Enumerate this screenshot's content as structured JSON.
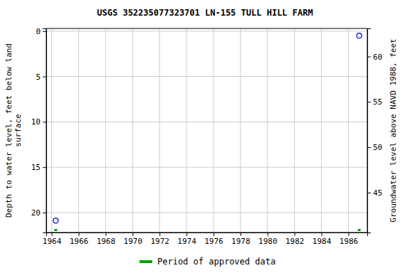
{
  "chart_data": {
    "type": "scatter",
    "title": "USGS 352235077323701 LN-155 TULL HILL FARM",
    "y_label": "Depth to water level, feet below land surface",
    "y2_label": "Groundwater level above NAVD 1988, feet",
    "xlim": [
      1963.6,
      1987.4
    ],
    "xticks": [
      1964,
      1966,
      1968,
      1970,
      1972,
      1974,
      1976,
      1978,
      1980,
      1982,
      1984,
      1986
    ],
    "ylim": [
      22.2,
      -0.3
    ],
    "yticks": [
      0,
      5,
      10,
      15,
      20
    ],
    "y2lim": [
      40.6,
      63.1
    ],
    "y2ticks": [
      45,
      50,
      55,
      60
    ],
    "grid": true,
    "legend": "bottom",
    "series": [
      {
        "color": "#0000cc",
        "marker": "circle",
        "x": [
          1964.3,
          1986.8
        ],
        "values": [
          20.9,
          0.5
        ]
      },
      {
        "name": "Period of approved data",
        "type": "period",
        "color": "#00a000",
        "x": [
          1964.3,
          1986.8
        ]
      }
    ]
  }
}
